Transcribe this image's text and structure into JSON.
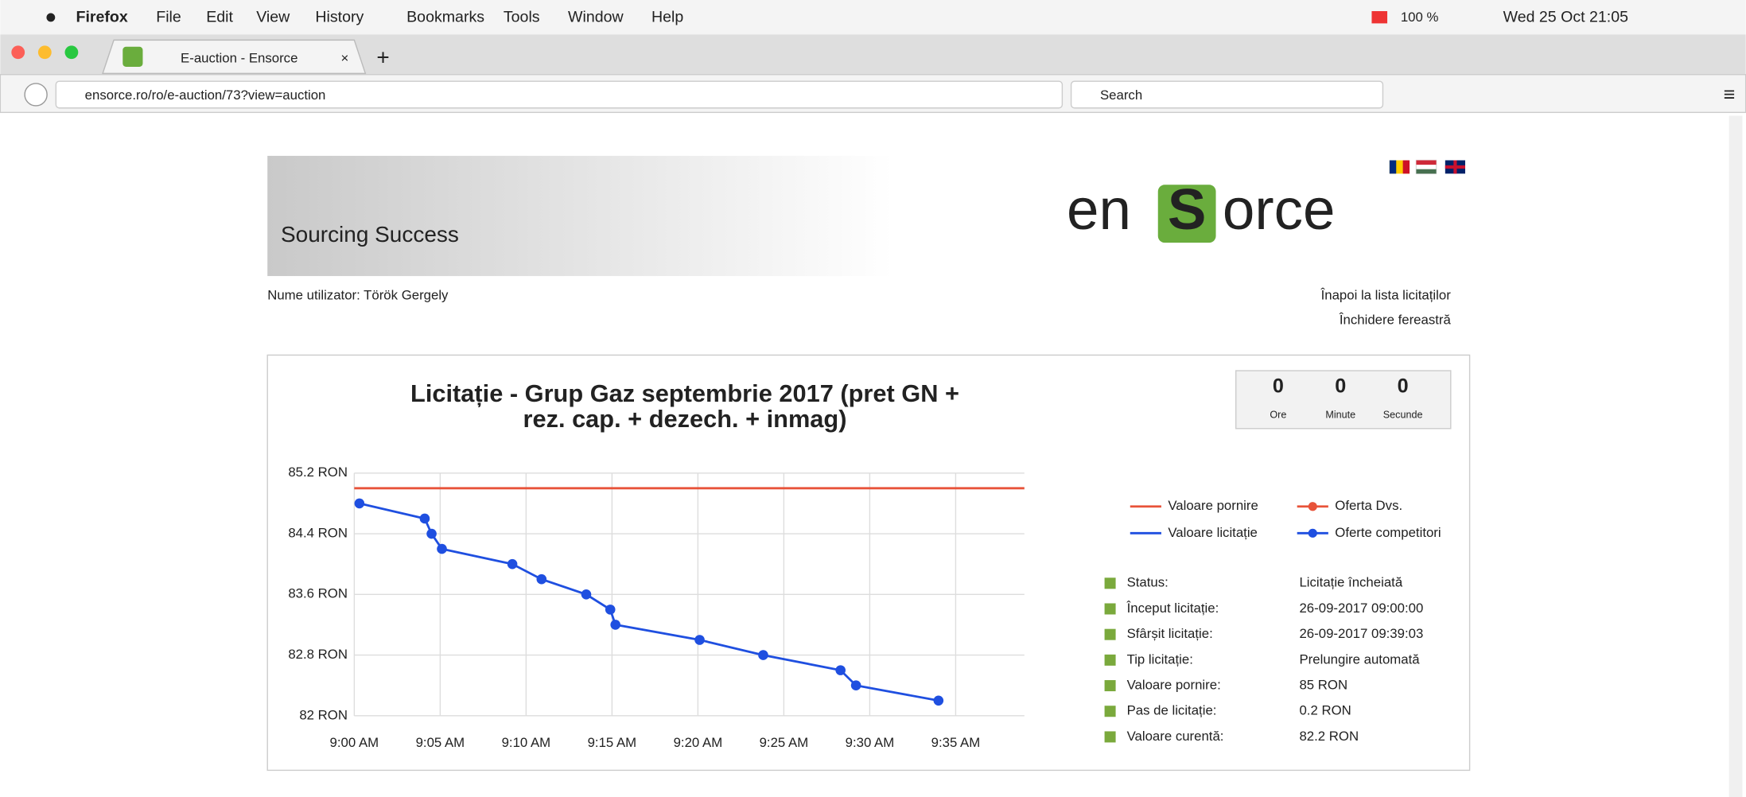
{
  "menu": {
    "app": "Firefox",
    "items": [
      "File",
      "Edit",
      "View",
      "History",
      "Bookmarks",
      "Tools",
      "Window",
      "Help"
    ],
    "battery": "100 %",
    "clock": "Wed 25 Oct 21:05"
  },
  "tab": {
    "title": "E-auction - Ensorce"
  },
  "address": {
    "url": "ensorce.ro/ro/e-auction/73?view=auction",
    "search": "Search"
  },
  "header": {
    "slogan": "Sourcing Success",
    "logo": [
      "en",
      "S",
      "orce"
    ],
    "user": "Nume utilizator: Török Gergely",
    "links": [
      "Înapoi la lista licitaților",
      "Închidere fereastră"
    ]
  },
  "timer": {
    "values": [
      0,
      0,
      0
    ],
    "labels": [
      "Ore",
      "Minute",
      "Secunde"
    ]
  },
  "info": {
    "rows": [
      [
        "Status:",
        "Licitație încheiată"
      ],
      [
        "Început licitație:",
        "26-09-2017 09:00:00"
      ],
      [
        "Sfârșit licitație:",
        "26-09-2017 09:39:03"
      ],
      [
        "Tip licitație:",
        "Prelungire automată"
      ],
      [
        "Valoare pornire:",
        "85 RON"
      ],
      [
        "Pas de licitație:",
        "0.2 RON"
      ],
      [
        "Valoare curentă:",
        "82.2 RON"
      ]
    ]
  },
  "chart_data": {
    "type": "line",
    "title": [
      "Licitație - Grup Gaz septembrie 2017 (pret GN +",
      "rez. cap. + dezech. + inmag)"
    ],
    "xlim": [
      0,
      39
    ],
    "xticks": [
      {
        "value": 0,
        "label": "9:00 AM"
      },
      {
        "value": 5,
        "label": "9:05 AM"
      },
      {
        "value": 10,
        "label": "9:10 AM"
      },
      {
        "value": 15,
        "label": "9:15 AM"
      },
      {
        "value": 20,
        "label": "9:20 AM"
      },
      {
        "value": 25,
        "label": "9:25 AM"
      },
      {
        "value": 30,
        "label": "9:30 AM"
      },
      {
        "value": 35,
        "label": "9:35 AM"
      }
    ],
    "ylim": [
      82,
      85.2
    ],
    "yticks": [
      {
        "value": 85.2,
        "label": "85.2 RON"
      },
      {
        "value": 84.4,
        "label": "84.4 RON"
      },
      {
        "value": 83.6,
        "label": "83.6 RON"
      },
      {
        "value": 82.8,
        "label": "82.8 RON"
      },
      {
        "value": 82,
        "label": "82 RON"
      }
    ],
    "grid": true,
    "series": [
      {
        "name": "Valoare pornire",
        "color": "#e8533a",
        "marker": false,
        "x": [
          0,
          39
        ],
        "values": [
          85,
          85
        ]
      },
      {
        "name": "Oferta Dvs.",
        "color": "#e8533a",
        "marker": true,
        "x": [],
        "values": []
      },
      {
        "name": "Valoare licitație",
        "color": "#1f4fe0",
        "marker": false,
        "x": [],
        "values": []
      },
      {
        "name": "Oferte competitori",
        "color": "#1f4fe0",
        "marker": true,
        "x": [
          0.3,
          4.1,
          4.5,
          5.1,
          9.2,
          10.9,
          13.5,
          14.9,
          15.2,
          20.1,
          23.8,
          28.3,
          29.2,
          34.0
        ],
        "values": [
          84.8,
          84.6,
          84.4,
          84.2,
          84.0,
          83.8,
          83.6,
          83.4,
          83.2,
          83.0,
          82.8,
          82.6,
          82.4,
          82.2
        ]
      }
    ]
  }
}
